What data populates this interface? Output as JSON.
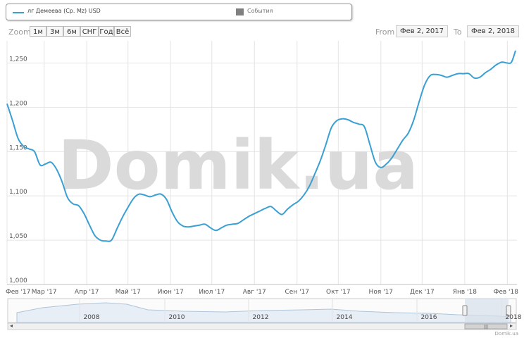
{
  "legend": {
    "series_name": "лг Демеева (Ср. Мz) USD",
    "events_label": "События"
  },
  "zoom": {
    "label": "Zoom",
    "buttons": [
      "1м",
      "3м",
      "6м",
      "СНГ",
      "Год",
      "Всё"
    ]
  },
  "range": {
    "from_label": "From",
    "from_value": "Фев 2, 2017",
    "to_label": "To",
    "to_value": "Фев 2, 2018"
  },
  "watermark": "Domik.ua",
  "credit": "Domik.ua",
  "colors": {
    "line": "#3a9fd2",
    "grid": "#e4e4e4",
    "watermark": "#dadada"
  },
  "navigator_years": [
    "2008",
    "2010",
    "2012",
    "2014",
    "2016",
    "2018"
  ],
  "chart_data": {
    "type": "line",
    "x_labels": [
      "Фев '17",
      "Мар '17",
      "Апр '17",
      "Май '17",
      "Июн '17",
      "Июл '17",
      "Авг '17",
      "Сен '17",
      "Окт '17",
      "Ноя '17",
      "Дек '17",
      "Янв '18",
      "Фев '18"
    ],
    "y_ticks": [
      "1,000",
      "1,050",
      "1,100",
      "1,150",
      "1,200",
      "1,250"
    ],
    "ylim": [
      1.0,
      1.275
    ],
    "grid": true,
    "series": [
      {
        "values": [
          [
            "2017-02-02",
            1.204
          ],
          [
            "2017-02-06",
            1.185
          ],
          [
            "2017-02-10",
            1.165
          ],
          [
            "2017-02-14",
            1.156
          ],
          [
            "2017-02-18",
            1.153
          ],
          [
            "2017-02-22",
            1.15
          ],
          [
            "2017-02-26",
            1.135
          ],
          [
            "2017-03-02",
            1.136
          ],
          [
            "2017-03-06",
            1.138
          ],
          [
            "2017-03-10",
            1.13
          ],
          [
            "2017-03-14",
            1.116
          ],
          [
            "2017-03-18",
            1.098
          ],
          [
            "2017-03-22",
            1.091
          ],
          [
            "2017-03-26",
            1.089
          ],
          [
            "2017-03-30",
            1.08
          ],
          [
            "2017-04-03",
            1.067
          ],
          [
            "2017-04-07",
            1.055
          ],
          [
            "2017-04-11",
            1.05
          ],
          [
            "2017-04-15",
            1.049
          ],
          [
            "2017-04-19",
            1.05
          ],
          [
            "2017-04-23",
            1.063
          ],
          [
            "2017-04-27",
            1.076
          ],
          [
            "2017-05-01",
            1.087
          ],
          [
            "2017-05-05",
            1.097
          ],
          [
            "2017-05-09",
            1.102
          ],
          [
            "2017-05-13",
            1.101
          ],
          [
            "2017-05-17",
            1.099
          ],
          [
            "2017-05-21",
            1.101
          ],
          [
            "2017-05-25",
            1.102
          ],
          [
            "2017-05-29",
            1.096
          ],
          [
            "2017-06-02",
            1.082
          ],
          [
            "2017-06-06",
            1.071
          ],
          [
            "2017-06-10",
            1.066
          ],
          [
            "2017-06-14",
            1.065
          ],
          [
            "2017-06-18",
            1.066
          ],
          [
            "2017-06-22",
            1.067
          ],
          [
            "2017-06-26",
            1.068
          ],
          [
            "2017-06-30",
            1.064
          ],
          [
            "2017-07-04",
            1.061
          ],
          [
            "2017-07-08",
            1.064
          ],
          [
            "2017-07-12",
            1.067
          ],
          [
            "2017-07-16",
            1.068
          ],
          [
            "2017-07-20",
            1.069
          ],
          [
            "2017-07-24",
            1.073
          ],
          [
            "2017-07-28",
            1.077
          ],
          [
            "2017-08-01",
            1.08
          ],
          [
            "2017-08-05",
            1.083
          ],
          [
            "2017-08-09",
            1.086
          ],
          [
            "2017-08-13",
            1.088
          ],
          [
            "2017-08-17",
            1.083
          ],
          [
            "2017-08-21",
            1.079
          ],
          [
            "2017-08-25",
            1.085
          ],
          [
            "2017-08-29",
            1.09
          ],
          [
            "2017-09-02",
            1.094
          ],
          [
            "2017-09-06",
            1.101
          ],
          [
            "2017-09-10",
            1.111
          ],
          [
            "2017-09-14",
            1.125
          ],
          [
            "2017-09-18",
            1.14
          ],
          [
            "2017-09-22",
            1.158
          ],
          [
            "2017-09-26",
            1.177
          ],
          [
            "2017-09-30",
            1.185
          ],
          [
            "2017-10-04",
            1.187
          ],
          [
            "2017-10-08",
            1.186
          ],
          [
            "2017-10-12",
            1.183
          ],
          [
            "2017-10-16",
            1.181
          ],
          [
            "2017-10-20",
            1.178
          ],
          [
            "2017-10-24",
            1.158
          ],
          [
            "2017-10-28",
            1.138
          ],
          [
            "2017-11-01",
            1.132
          ],
          [
            "2017-11-05",
            1.136
          ],
          [
            "2017-11-09",
            1.143
          ],
          [
            "2017-11-13",
            1.153
          ],
          [
            "2017-11-17",
            1.163
          ],
          [
            "2017-11-21",
            1.171
          ],
          [
            "2017-11-25",
            1.186
          ],
          [
            "2017-11-29",
            1.207
          ],
          [
            "2017-12-03",
            1.226
          ],
          [
            "2017-12-07",
            1.236
          ],
          [
            "2017-12-11",
            1.237
          ],
          [
            "2017-12-15",
            1.236
          ],
          [
            "2017-12-19",
            1.234
          ],
          [
            "2017-12-23",
            1.236
          ],
          [
            "2017-12-27",
            1.238
          ],
          [
            "2017-12-31",
            1.238
          ],
          [
            "2018-01-04",
            1.238
          ],
          [
            "2018-01-08",
            1.233
          ],
          [
            "2018-01-12",
            1.234
          ],
          [
            "2018-01-16",
            1.239
          ],
          [
            "2018-01-20",
            1.243
          ],
          [
            "2018-01-24",
            1.248
          ],
          [
            "2018-01-28",
            1.251
          ],
          [
            "2018-02-01",
            1.25
          ],
          [
            "2018-02-04",
            1.251
          ],
          [
            "2018-02-07",
            1.264
          ]
        ]
      }
    ]
  }
}
